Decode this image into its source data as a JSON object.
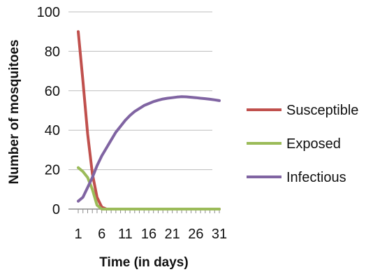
{
  "chart_data": {
    "type": "line",
    "title": "",
    "xlabel": "Time (in days)",
    "ylabel": "Number of mosquitoes",
    "xlim": [
      1,
      31
    ],
    "ylim": [
      0,
      100
    ],
    "x_tick_labels": [
      "1",
      "6",
      "11",
      "16",
      "21",
      "26",
      "31"
    ],
    "y_tick_labels": [
      "0",
      "20",
      "40",
      "60",
      "80",
      "100"
    ],
    "grid": "horizontal",
    "legend_position": "right",
    "x": [
      1,
      2,
      3,
      4,
      5,
      6,
      7,
      8,
      9,
      10,
      11,
      12,
      13,
      14,
      15,
      16,
      17,
      18,
      19,
      20,
      21,
      22,
      23,
      24,
      25,
      26,
      27,
      28,
      29,
      30,
      31
    ],
    "series": [
      {
        "name": "Susceptible",
        "color": "#c0504d",
        "values": [
          90,
          65,
          38,
          18,
          6,
          1,
          0,
          0,
          0,
          0,
          0,
          0,
          0,
          0,
          0,
          0,
          0,
          0,
          0,
          0,
          0,
          0,
          0,
          0,
          0,
          0,
          0,
          0,
          0,
          0,
          0
        ]
      },
      {
        "name": "Exposed",
        "color": "#9bbb59",
        "values": [
          21,
          19,
          16,
          10,
          2,
          0,
          0,
          0,
          0,
          0,
          0,
          0,
          0,
          0,
          0,
          0,
          0,
          0,
          0,
          0,
          0,
          0,
          0,
          0,
          0,
          0,
          0,
          0,
          0,
          0,
          0
        ]
      },
      {
        "name": "Infectious",
        "color": "#8064a2",
        "values": [
          4,
          6,
          11,
          16,
          22,
          27,
          31,
          35,
          39,
          42,
          45,
          47.5,
          49.5,
          51,
          52.5,
          53.5,
          54.5,
          55.2,
          55.8,
          56.2,
          56.5,
          56.8,
          57,
          56.9,
          56.7,
          56.5,
          56.2,
          56,
          55.7,
          55.4,
          55
        ]
      }
    ]
  }
}
